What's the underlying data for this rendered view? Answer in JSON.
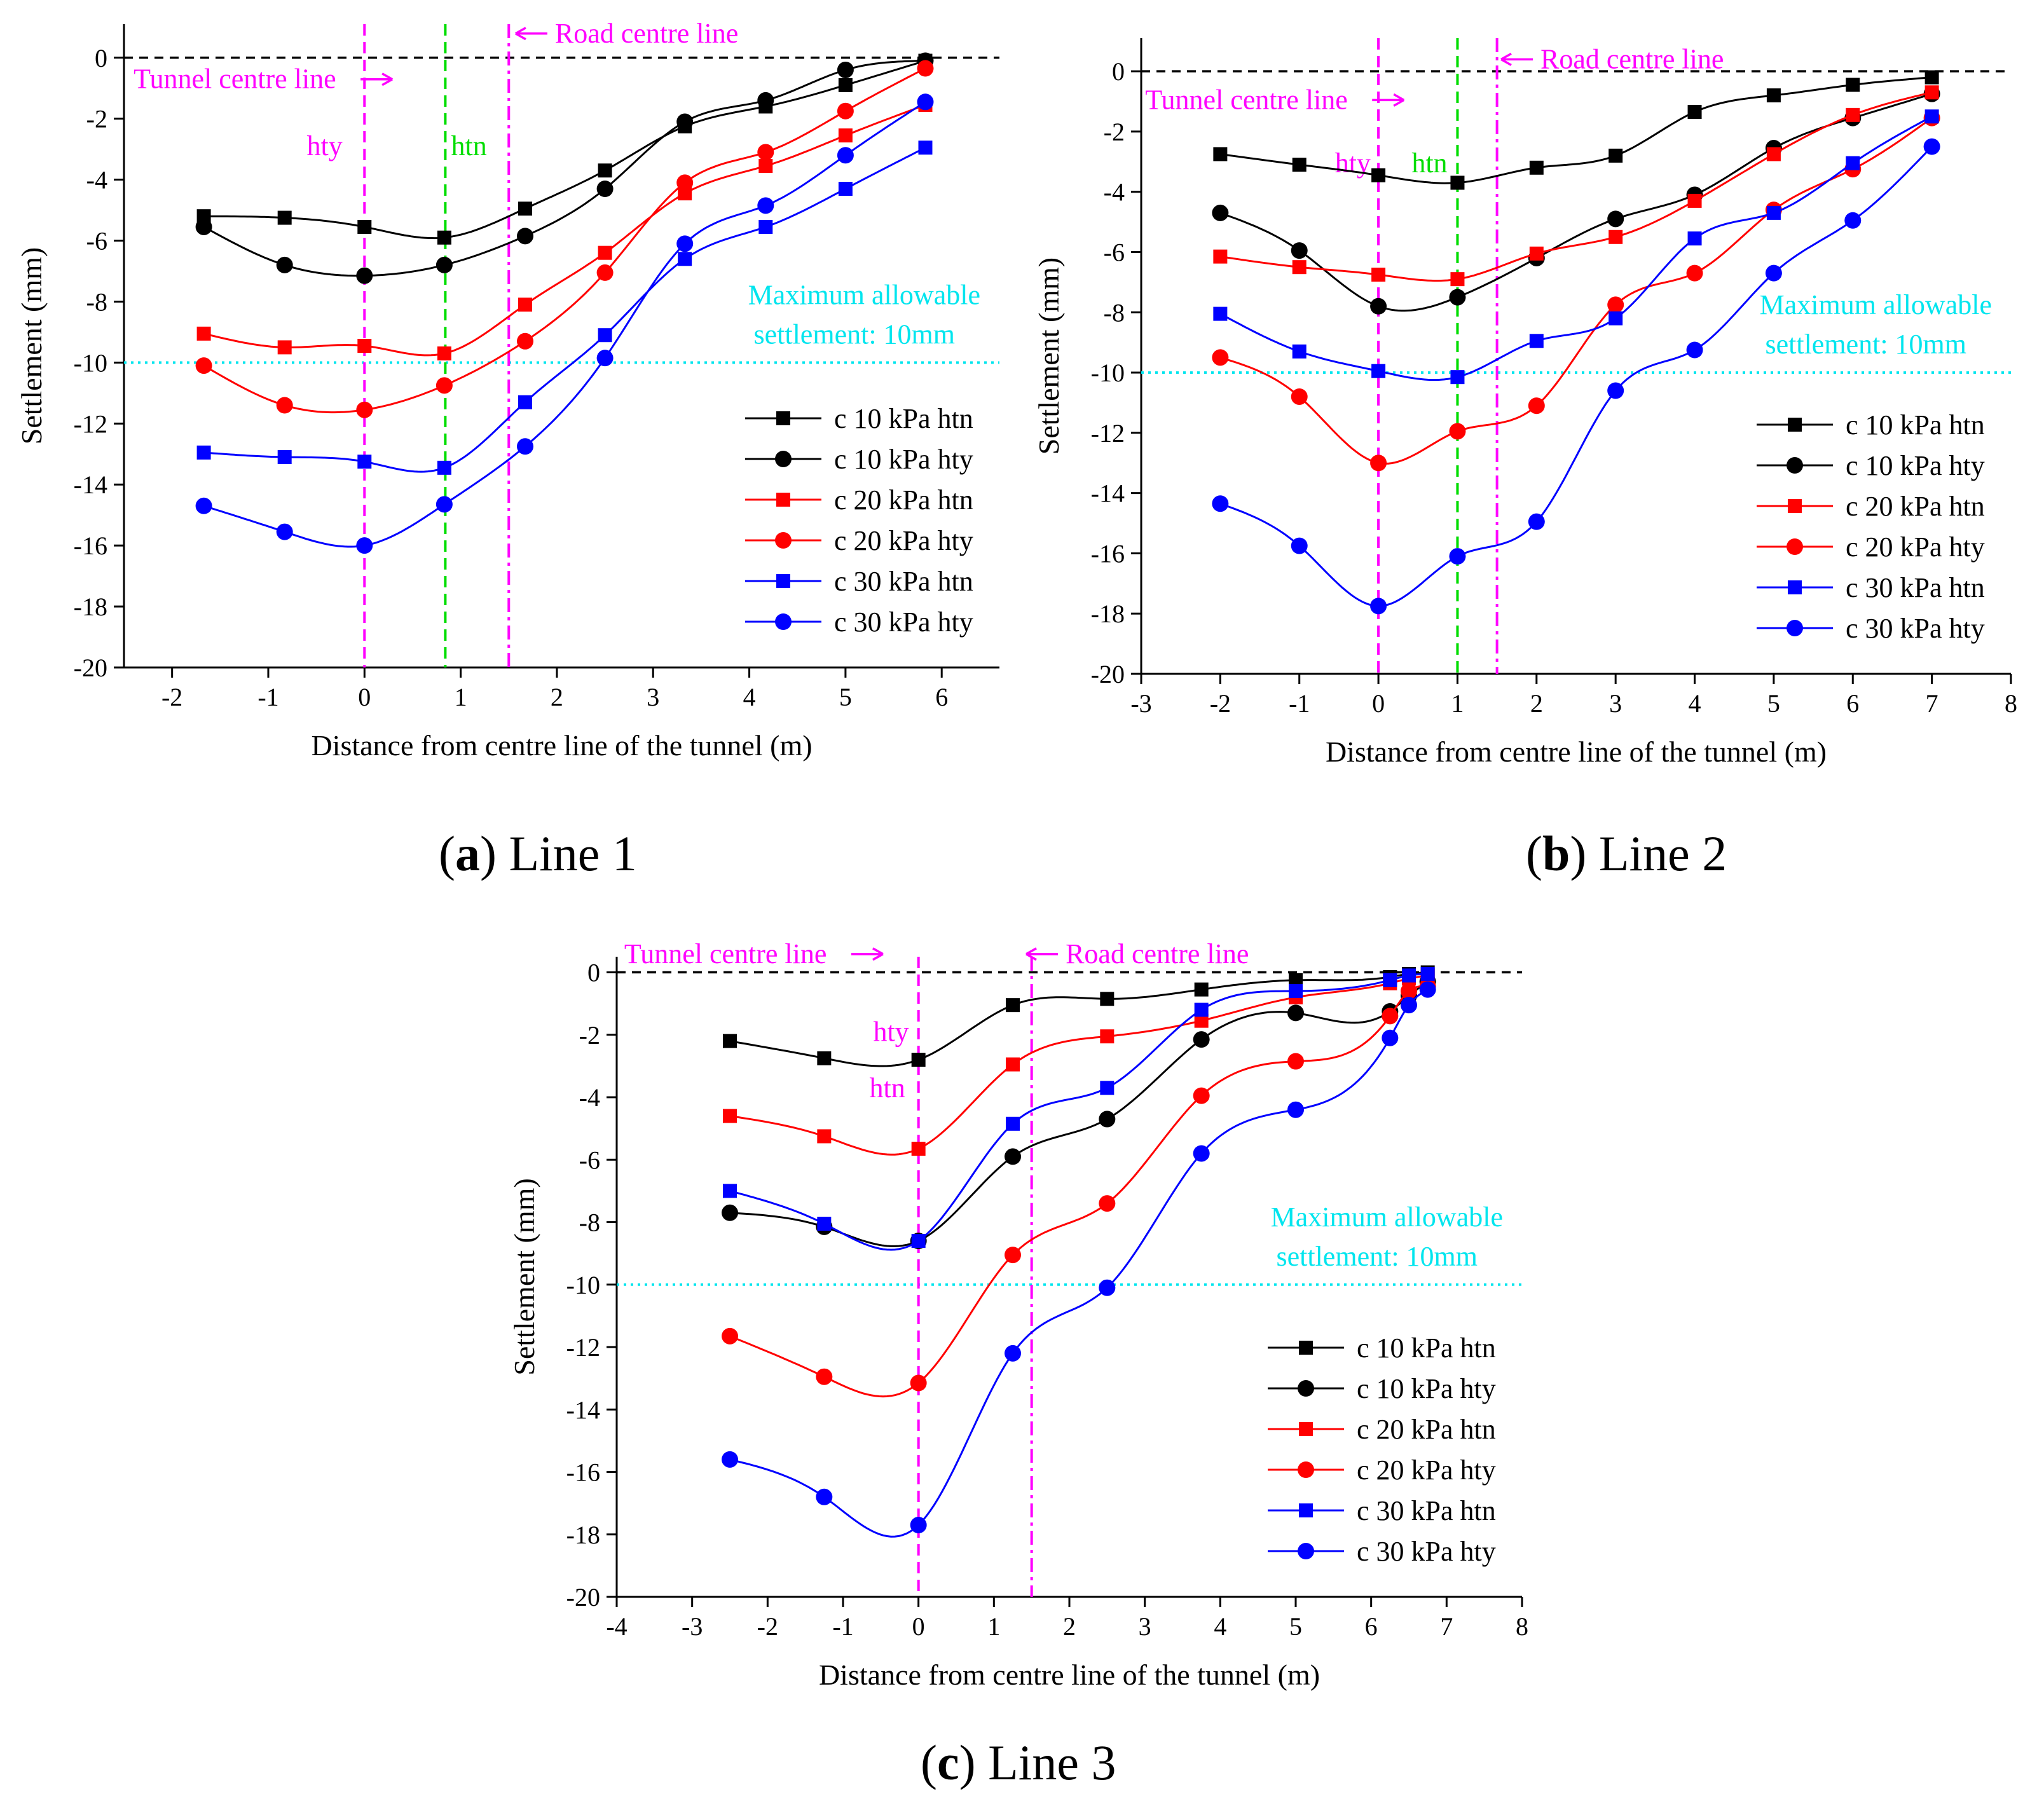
{
  "colors": {
    "black": "#000000",
    "red": "#ff0000",
    "blue": "#0000ff",
    "magenta": "#ff00ff",
    "green": "#00dd00",
    "cyan": "#00e5ee"
  },
  "captions": [
    {
      "id": "a",
      "letter": "a",
      "text": " Line 1"
    },
    {
      "id": "b",
      "letter": "b",
      "text": " Line 2"
    },
    {
      "id": "c",
      "letter": "c",
      "text": " Line 3"
    }
  ],
  "chart_data": [
    {
      "id": "a",
      "type": "line",
      "xlabel": "Distance from centre line of the tunnel (m)",
      "ylabel": "Settlement  (mm)",
      "xlim": [
        -2.5,
        6.6
      ],
      "ylim": [
        -20,
        1.1
      ],
      "xticks": [
        -2,
        -1,
        0,
        1,
        2,
        3,
        4,
        5,
        6
      ],
      "yticks": [
        0,
        -2,
        -4,
        -6,
        -8,
        -10,
        -12,
        -14,
        -16,
        -18,
        -20
      ],
      "legend": "bottom-right",
      "threshold": {
        "y": -10,
        "label1": "Maximum allowable",
        "label2": "settlement: 10mm"
      },
      "vlines": [
        {
          "x": 0,
          "color": "magenta",
          "style": "dash"
        },
        {
          "x": 0.84,
          "color": "green",
          "style": "dash"
        },
        {
          "x": 1.5,
          "color": "magenta",
          "style": "dashdot"
        }
      ],
      "annotations": [
        {
          "text": "Road centre line",
          "x": 1.98,
          "y": 0.5,
          "color": "magenta",
          "arrow": "left"
        },
        {
          "text": "Tunnel centre line",
          "x": -2.4,
          "y": -1.0,
          "color": "magenta",
          "arrow": "right"
        },
        {
          "text": "hty",
          "x": -0.6,
          "y": -3.2,
          "color": "magenta"
        },
        {
          "text": "htn",
          "x": 0.9,
          "y": -3.2,
          "color": "green"
        }
      ],
      "series": [
        {
          "name": "c 10 kPa htn",
          "color": "black",
          "marker": "square",
          "x": [
            -1.67,
            -0.83,
            0,
            0.83,
            1.67,
            2.5,
            3.33,
            4.17,
            5.0,
            5.83
          ],
          "y": [
            -5.2,
            -5.25,
            -5.55,
            -5.9,
            -4.95,
            -3.7,
            -2.25,
            -1.6,
            -0.9,
            -0.1
          ]
        },
        {
          "name": "c 10 kPa hty",
          "color": "black",
          "marker": "circle",
          "x": [
            -1.67,
            -0.83,
            0,
            0.83,
            1.67,
            2.5,
            3.33,
            4.17,
            5.0,
            5.83
          ],
          "y": [
            -5.55,
            -6.8,
            -7.15,
            -6.8,
            -5.85,
            -4.3,
            -2.1,
            -1.4,
            -0.4,
            -0.1
          ]
        },
        {
          "name": "c 20 kPa htn",
          "color": "red",
          "marker": "square",
          "x": [
            -1.67,
            -0.83,
            0,
            0.83,
            1.67,
            2.5,
            3.33,
            4.17,
            5.0,
            5.83
          ],
          "y": [
            -9.05,
            -9.5,
            -9.45,
            -9.7,
            -8.1,
            -6.4,
            -4.45,
            -3.55,
            -2.55,
            -1.55
          ]
        },
        {
          "name": "c 20 kPa hty",
          "color": "red",
          "marker": "circle",
          "x": [
            -1.67,
            -0.83,
            0,
            0.83,
            1.67,
            2.5,
            3.33,
            4.17,
            5.0,
            5.83
          ],
          "y": [
            -10.1,
            -11.4,
            -11.55,
            -10.75,
            -9.3,
            -7.05,
            -4.1,
            -3.1,
            -1.75,
            -0.35
          ]
        },
        {
          "name": "c 30 kPa htn",
          "color": "blue",
          "marker": "square",
          "x": [
            -1.67,
            -0.83,
            0,
            0.83,
            1.67,
            2.5,
            3.33,
            4.17,
            5.0,
            5.83
          ],
          "y": [
            -12.95,
            -13.1,
            -13.25,
            -13.45,
            -11.3,
            -9.1,
            -6.6,
            -5.55,
            -4.3,
            -2.95
          ]
        },
        {
          "name": "c 30 kPa hty",
          "color": "blue",
          "marker": "circle",
          "x": [
            -1.67,
            -0.83,
            0,
            0.83,
            1.67,
            2.5,
            3.33,
            4.17,
            5.0,
            5.83
          ],
          "y": [
            -14.7,
            -15.55,
            -16.0,
            -14.65,
            -12.75,
            -9.85,
            -6.1,
            -4.85,
            -3.2,
            -1.45
          ]
        }
      ]
    },
    {
      "id": "b",
      "type": "line",
      "xlabel": "Distance from centre line of the tunnel (m)",
      "ylabel": "Settlement  (mm)",
      "xlim": [
        -3,
        8
      ],
      "ylim": [
        -20,
        1.1
      ],
      "xticks": [
        -3,
        -2,
        -1,
        0,
        1,
        2,
        3,
        4,
        5,
        6,
        7,
        8
      ],
      "yticks": [
        0,
        -2,
        -4,
        -6,
        -8,
        -10,
        -12,
        -14,
        -16,
        -18,
        -20
      ],
      "legend": "bottom-right",
      "threshold": {
        "y": -10,
        "label1": "Maximum allowable",
        "label2": "settlement: 10mm"
      },
      "vlines": [
        {
          "x": 0,
          "color": "magenta",
          "style": "dash"
        },
        {
          "x": 1,
          "color": "green",
          "style": "dash"
        },
        {
          "x": 1.5,
          "color": "magenta",
          "style": "dashdot"
        }
      ],
      "annotations": [
        {
          "text": "Road centre line",
          "x": 2.05,
          "y": 0.1,
          "color": "magenta",
          "arrow": "left"
        },
        {
          "text": "Tunnel centre line",
          "x": -2.95,
          "y": -1.25,
          "color": "magenta",
          "arrow": "right"
        },
        {
          "text": "hty",
          "x": -0.55,
          "y": -3.35,
          "color": "magenta"
        },
        {
          "text": "htn",
          "x": 0.42,
          "y": -3.35,
          "color": "green"
        }
      ],
      "series": [
        {
          "name": "c 10 kPa htn",
          "color": "black",
          "marker": "square",
          "x": [
            -2,
            -1,
            0,
            1,
            2,
            3,
            4,
            5,
            6,
            7
          ],
          "y": [
            -2.75,
            -3.1,
            -3.45,
            -3.7,
            -3.2,
            -2.8,
            -1.35,
            -0.8,
            -0.45,
            -0.2
          ]
        },
        {
          "name": "c 10 kPa hty",
          "color": "black",
          "marker": "circle",
          "x": [
            -2,
            -1,
            0,
            1,
            2,
            3,
            4,
            5,
            6,
            7
          ],
          "y": [
            -4.7,
            -5.95,
            -7.8,
            -7.5,
            -6.2,
            -4.9,
            -4.1,
            -2.55,
            -1.55,
            -0.75
          ]
        },
        {
          "name": "c 20 kPa htn",
          "color": "red",
          "marker": "square",
          "x": [
            -2,
            -1,
            0,
            1,
            2,
            3,
            4,
            5,
            6,
            7
          ],
          "y": [
            -6.15,
            -6.5,
            -6.75,
            -6.9,
            -6.05,
            -5.5,
            -4.3,
            -2.75,
            -1.45,
            -0.7
          ]
        },
        {
          "name": "c 20 kPa hty",
          "color": "red",
          "marker": "circle",
          "x": [
            -2,
            -1,
            0,
            1,
            2,
            3,
            4,
            5,
            6,
            7
          ],
          "y": [
            -9.5,
            -10.8,
            -13.0,
            -11.95,
            -11.1,
            -7.75,
            -6.7,
            -4.6,
            -3.25,
            -1.55
          ]
        },
        {
          "name": "c 30 kPa htn",
          "color": "blue",
          "marker": "square",
          "x": [
            -2,
            -1,
            0,
            1,
            2,
            3,
            4,
            5,
            6,
            7
          ],
          "y": [
            -8.05,
            -9.3,
            -9.95,
            -10.15,
            -8.95,
            -8.2,
            -5.55,
            -4.7,
            -3.05,
            -1.5
          ]
        },
        {
          "name": "c 30 kPa hty",
          "color": "blue",
          "marker": "circle",
          "x": [
            -2,
            -1,
            0,
            1,
            2,
            3,
            4,
            5,
            6,
            7
          ],
          "y": [
            -14.35,
            -15.75,
            -17.75,
            -16.1,
            -14.95,
            -10.6,
            -9.25,
            -6.7,
            -4.95,
            -2.5
          ]
        }
      ]
    },
    {
      "id": "c",
      "type": "line",
      "xlabel": "Distance from centre line of the tunnel (m)",
      "ylabel": "Settlement  (mm)",
      "xlim": [
        -4,
        8
      ],
      "ylim": [
        -20,
        0.5
      ],
      "xticks": [
        -4,
        -3,
        -2,
        -1,
        0,
        1,
        2,
        3,
        4,
        5,
        6,
        7,
        8
      ],
      "yticks": [
        0,
        -2,
        -4,
        -6,
        -8,
        -10,
        -12,
        -14,
        -16,
        -18,
        -20
      ],
      "legend": "bottom-right",
      "threshold": {
        "y": -10,
        "label1": "Maximum allowable",
        "label2": "settlement: 10mm"
      },
      "vlines": [
        {
          "x": 0,
          "color": "magenta",
          "style": "dash"
        },
        {
          "x": 1.5,
          "color": "magenta",
          "style": "dashdot"
        }
      ],
      "annotations": [
        {
          "text": "Road centre line",
          "x": 1.95,
          "y": 0.3,
          "color": "magenta",
          "arrow": "left"
        },
        {
          "text": "Tunnel centre line",
          "x": -3.9,
          "y": 0.3,
          "color": "magenta",
          "arrow": "right"
        },
        {
          "text": "hty",
          "x": -0.6,
          "y": -2.2,
          "color": "magenta"
        },
        {
          "text": "htn",
          "x": -0.65,
          "y": -4.0,
          "color": "magenta"
        }
      ],
      "series": [
        {
          "name": "c 10 kPa htn",
          "color": "black",
          "marker": "square",
          "x": [
            -2.5,
            -1.25,
            0,
            1.25,
            2.5,
            3.75,
            5.0,
            6.25,
            6.5,
            6.75
          ],
          "y": [
            -2.2,
            -2.75,
            -2.8,
            -1.05,
            -0.85,
            -0.55,
            -0.25,
            -0.15,
            -0.05,
            0
          ]
        },
        {
          "name": "c 10 kPa hty",
          "color": "black",
          "marker": "circle",
          "x": [
            -2.5,
            -1.25,
            0,
            1.25,
            2.5,
            3.75,
            5.0,
            6.25,
            6.5,
            6.75
          ],
          "y": [
            -7.7,
            -8.15,
            -8.6,
            -5.9,
            -4.7,
            -2.15,
            -1.3,
            -1.25,
            -0.75,
            -0.3
          ]
        },
        {
          "name": "c 20 kPa htn",
          "color": "red",
          "marker": "square",
          "x": [
            -2.5,
            -1.25,
            0,
            1.25,
            2.5,
            3.75,
            5.0,
            6.25,
            6.5,
            6.75
          ],
          "y": [
            -4.6,
            -5.25,
            -5.65,
            -2.95,
            -2.05,
            -1.55,
            -0.8,
            -0.35,
            -0.2,
            -0.1
          ]
        },
        {
          "name": "c 20 kPa hty",
          "color": "red",
          "marker": "circle",
          "x": [
            -2.5,
            -1.25,
            0,
            1.25,
            2.5,
            3.75,
            5.0,
            6.25,
            6.5,
            6.75
          ],
          "y": [
            -11.65,
            -12.95,
            -13.15,
            -9.05,
            -7.4,
            -3.95,
            -2.85,
            -1.4,
            -0.6,
            -0.45
          ]
        },
        {
          "name": "c 30 kPa htn",
          "color": "blue",
          "marker": "square",
          "x": [
            -2.5,
            -1.25,
            0,
            1.25,
            2.5,
            3.75,
            5.0,
            6.25,
            6.5,
            6.75
          ],
          "y": [
            -7.0,
            -8.05,
            -8.6,
            -4.85,
            -3.7,
            -1.2,
            -0.6,
            -0.25,
            -0.1,
            -0.05
          ]
        },
        {
          "name": "c 30 kPa hty",
          "color": "blue",
          "marker": "circle",
          "x": [
            -2.5,
            -1.25,
            0,
            1.25,
            2.5,
            3.75,
            5.0,
            6.25,
            6.5,
            6.75
          ],
          "y": [
            -15.6,
            -16.8,
            -17.7,
            -12.2,
            -10.1,
            -5.8,
            -4.4,
            -2.1,
            -1.05,
            -0.55
          ]
        }
      ]
    }
  ]
}
